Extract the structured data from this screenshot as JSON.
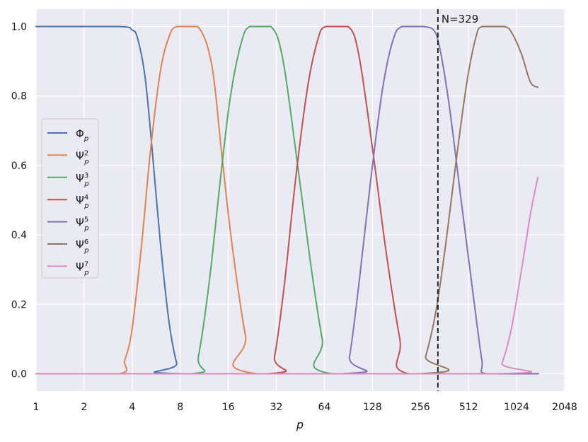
{
  "chart_data": {
    "type": "line",
    "xscale": "log2",
    "xlabel": "p",
    "ylabel": "",
    "title": "",
    "xlim": [
      1,
      2048
    ],
    "ylim": [
      -0.05,
      1.05
    ],
    "x_ticks": [
      1,
      2,
      4,
      8,
      16,
      32,
      64,
      128,
      256,
      512,
      1024,
      2048
    ],
    "x_tick_labels": [
      "1",
      "2",
      "4",
      "8",
      "16",
      "32",
      "64",
      "128",
      "256",
      "512",
      "1024",
      "2048"
    ],
    "y_ticks": [
      0.0,
      0.2,
      0.4,
      0.6,
      0.8,
      1.0
    ],
    "y_tick_labels": [
      "0.0",
      "0.2",
      "0.4",
      "0.6",
      "0.8",
      "1.0"
    ],
    "grid": true,
    "legend_position": "center-left",
    "background": "#eaeaf2",
    "vline": {
      "x": 329,
      "label": "N=329",
      "style": "dashed",
      "color": "#222222"
    },
    "series": [
      {
        "name": "Φ_p",
        "legend_main": "Φ",
        "legend_sub": "p",
        "legend_sup": "",
        "color": "#4c72b0",
        "points": [
          [
            1,
            1.0
          ],
          [
            3.3,
            1.0
          ],
          [
            4.0,
            0.99
          ],
          [
            4.3,
            0.97
          ],
          [
            4.8,
            0.86
          ],
          [
            5.3,
            0.66
          ],
          [
            6.0,
            0.38
          ],
          [
            6.8,
            0.15
          ],
          [
            7.6,
            0.03
          ],
          [
            8.2,
            0.0
          ],
          [
            1400,
            0.0
          ]
        ]
      },
      {
        "name": "Ψ²_p",
        "legend_main": "Ψ",
        "legend_sub": "p",
        "legend_sup": "2",
        "color": "#dd8452",
        "points": [
          [
            1,
            0.0
          ],
          [
            3.3,
            0.0
          ],
          [
            3.6,
            0.04
          ],
          [
            4.0,
            0.13
          ],
          [
            4.6,
            0.38
          ],
          [
            5.2,
            0.64
          ],
          [
            6.0,
            0.87
          ],
          [
            6.8,
            0.97
          ],
          [
            7.6,
            1.0
          ],
          [
            10.3,
            1.0
          ],
          [
            12.6,
            0.89
          ],
          [
            14.5,
            0.64
          ],
          [
            16.8,
            0.38
          ],
          [
            20.5,
            0.11
          ],
          [
            24.2,
            0.0
          ],
          [
            1400,
            0.0
          ]
        ]
      },
      {
        "name": "Ψ³_p",
        "legend_main": "Ψ",
        "legend_sub": "p",
        "legend_sup": "3",
        "color": "#55a868",
        "points": [
          [
            1,
            0.0
          ],
          [
            9.4,
            0.0
          ],
          [
            10.4,
            0.05
          ],
          [
            12.2,
            0.27
          ],
          [
            14.2,
            0.55
          ],
          [
            16.4,
            0.79
          ],
          [
            19.2,
            0.95
          ],
          [
            21.8,
            1.0
          ],
          [
            29.6,
            1.0
          ],
          [
            35.0,
            0.91
          ],
          [
            42.4,
            0.64
          ],
          [
            52.0,
            0.33
          ],
          [
            62.0,
            0.1
          ],
          [
            71.0,
            0.0
          ],
          [
            1400,
            0.0
          ]
        ]
      },
      {
        "name": "Ψ⁴_p",
        "legend_main": "Ψ",
        "legend_sub": "p",
        "legend_sup": "4",
        "color": "#c44e52",
        "points": [
          [
            1,
            0.0
          ],
          [
            28.0,
            0.0
          ],
          [
            31.2,
            0.05
          ],
          [
            36.0,
            0.26
          ],
          [
            42.0,
            0.55
          ],
          [
            50.0,
            0.82
          ],
          [
            58.0,
            0.96
          ],
          [
            65.0,
            1.0
          ],
          [
            90.0,
            1.0
          ],
          [
            105.0,
            0.92
          ],
          [
            128.0,
            0.65
          ],
          [
            156.0,
            0.35
          ],
          [
            190.0,
            0.1
          ],
          [
            215.0,
            0.0
          ],
          [
            1400,
            0.0
          ]
        ]
      },
      {
        "name": "Ψ⁵_p",
        "legend_main": "Ψ",
        "legend_sub": "p",
        "legend_sup": "5",
        "color": "#8172b3",
        "points": [
          [
            1,
            0.0
          ],
          [
            83.0,
            0.0
          ],
          [
            92.0,
            0.05
          ],
          [
            106.0,
            0.27
          ],
          [
            125.0,
            0.56
          ],
          [
            148.0,
            0.82
          ],
          [
            172.0,
            0.96
          ],
          [
            196.0,
            1.0
          ],
          [
            270.0,
            1.0
          ],
          [
            320.0,
            0.98
          ],
          [
            380.0,
            0.8
          ],
          [
            460.0,
            0.5
          ],
          [
            550.0,
            0.22
          ],
          [
            620.0,
            0.04
          ],
          [
            660.0,
            0.0
          ],
          [
            1400,
            0.0
          ]
        ]
      },
      {
        "name": "Ψ⁶_p",
        "legend_main": "Ψ",
        "legend_sub": "p",
        "legend_sup": "6",
        "color": "#937860",
        "points": [
          [
            1,
            0.0
          ],
          [
            250.0,
            0.0
          ],
          [
            276.0,
            0.05
          ],
          [
            320.0,
            0.18
          ],
          [
            370.0,
            0.38
          ],
          [
            430.0,
            0.62
          ],
          [
            500.0,
            0.84
          ],
          [
            570.0,
            0.97
          ],
          [
            625.0,
            1.0
          ],
          [
            860.0,
            1.0
          ],
          [
            960.0,
            0.98
          ],
          [
            1100.0,
            0.92
          ],
          [
            1250.0,
            0.84
          ],
          [
            1390.0,
            0.825
          ]
        ]
      },
      {
        "name": "Ψ⁷_p",
        "legend_main": "Ψ",
        "legend_sub": "p",
        "legend_sup": "7",
        "color": "#da8bc3",
        "points": [
          [
            1,
            0.0
          ],
          [
            760.0,
            0.0
          ],
          [
            830.0,
            0.03
          ],
          [
            950.0,
            0.13
          ],
          [
            1100.0,
            0.3
          ],
          [
            1250.0,
            0.46
          ],
          [
            1390.0,
            0.565
          ]
        ]
      }
    ]
  }
}
